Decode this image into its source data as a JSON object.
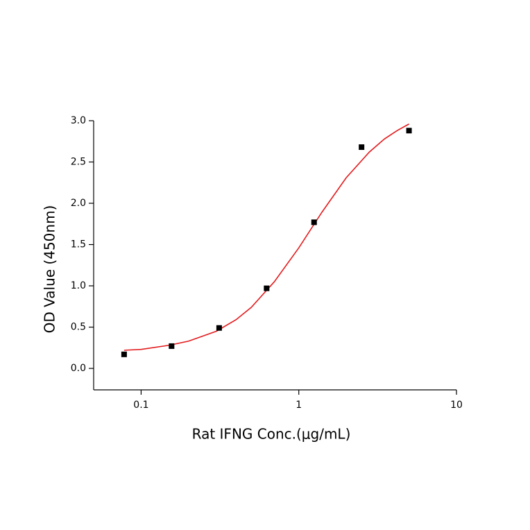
{
  "chart_data": {
    "type": "scatter",
    "x_label": "Rat IFNG Conc.(μg/mL)",
    "y_label": "OD Value (450nm)",
    "x": [
      0.078,
      0.156,
      0.3125,
      0.625,
      1.25,
      2.5,
      5
    ],
    "values": [
      0.17,
      0.27,
      0.49,
      0.97,
      1.77,
      2.68,
      2.88
    ],
    "color": "#000000",
    "fit": {
      "color": "#e31a1c",
      "x": [
        0.078,
        0.1,
        0.15,
        0.2,
        0.3,
        0.4,
        0.5,
        0.7,
        1,
        1.4,
        2,
        2.8,
        3.5,
        4.2,
        5
      ],
      "values": [
        0.22,
        0.23,
        0.28,
        0.33,
        0.45,
        0.59,
        0.74,
        1.05,
        1.46,
        1.89,
        2.31,
        2.62,
        2.78,
        2.88,
        2.96
      ]
    },
    "x_log": true,
    "xlim": [
      0.05,
      10
    ],
    "xticks": [
      0.1,
      1,
      10
    ],
    "ylim": [
      -0.26,
      3.0
    ],
    "yticks": [
      {
        "value": 0,
        "label": "0.0"
      },
      0.5,
      {
        "value": 1,
        "label": "1.0"
      },
      1.5,
      {
        "value": 2,
        "label": "2.0"
      },
      2.5,
      {
        "value": 3,
        "label": "3.0"
      }
    ]
  }
}
